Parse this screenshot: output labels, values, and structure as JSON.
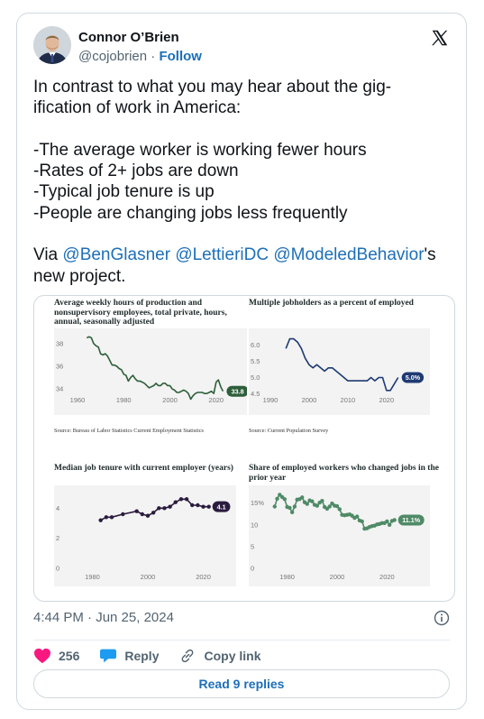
{
  "author": {
    "name": "Connor O’Brien",
    "handle": "@cojobrien",
    "separator": " · ",
    "follow_label": "Follow"
  },
  "tweet": {
    "line1": "In contrast to what you may hear about the gig-",
    "line2": "ification of work in America:",
    "bullet1": "-The average worker is working fewer hours",
    "bullet2": "-Rates of 2+ jobs are down",
    "bullet3": "-Typical job tenure is up",
    "bullet4": "-People are changing jobs less frequently",
    "via": "Via ",
    "mention1": "@BenGlasner",
    "mention2": "@LettieriDC",
    "mention3": "@ModeledBehavior",
    "suffix": "'s",
    "last_line": "new project."
  },
  "meta": {
    "timestamp": "4:44 PM · Jun 25, 2024"
  },
  "actions": {
    "likes": "256",
    "reply_label": "Reply",
    "copy_label": "Copy link"
  },
  "replies_button": "Read 9 replies",
  "colors": {
    "link": "#1d6fb8",
    "green": "#2e5e3a",
    "navy": "#1f3a73",
    "purple": "#2b1b3f",
    "teal": "#4f8a66",
    "heart": "#f91880"
  },
  "icons": {
    "logo": "x-logo-icon",
    "info": "info-icon",
    "like": "heart-icon",
    "reply": "speech-bubble-icon",
    "copy": "link-icon"
  },
  "chart_data": [
    {
      "type": "line",
      "title": "Average weekly hours of production and nonsupervisory employees, total private, hours, annual, seasonally adjusted",
      "source": "Source: Bureau of Labor Statistics Current Employment Statistics",
      "x_ticks": [
        "1960",
        "1980",
        "2000",
        "2020"
      ],
      "y_ticks": [
        "38",
        "36",
        "34"
      ],
      "xlim": [
        1960,
        2024
      ],
      "ylim": [
        33.3,
        38.7
      ],
      "end_label": "33.8",
      "x": [
        1964,
        1965,
        1966,
        1967,
        1968,
        1969,
        1970,
        1971,
        1972,
        1973,
        1974,
        1975,
        1976,
        1977,
        1978,
        1979,
        1980,
        1981,
        1982,
        1983,
        1984,
        1985,
        1986,
        1987,
        1988,
        1989,
        1990,
        1991,
        1992,
        1993,
        1994,
        1995,
        1996,
        1997,
        1998,
        1999,
        2000,
        2001,
        2002,
        2003,
        2004,
        2005,
        2006,
        2007,
        2008,
        2009,
        2010,
        2011,
        2012,
        2013,
        2014,
        2015,
        2016,
        2017,
        2018,
        2019,
        2020,
        2021,
        2022,
        2023
      ],
      "y": [
        38.5,
        38.6,
        38.5,
        38.0,
        37.8,
        37.7,
        37.1,
        37.0,
        37.1,
        36.9,
        36.5,
        36.1,
        36.1,
        36.0,
        35.8,
        35.7,
        35.3,
        35.2,
        34.7,
        35.0,
        35.2,
        34.9,
        34.7,
        34.7,
        34.6,
        34.5,
        34.3,
        34.1,
        34.2,
        34.3,
        34.5,
        34.3,
        34.3,
        34.5,
        34.5,
        34.3,
        34.3,
        34.0,
        33.9,
        33.7,
        33.7,
        33.8,
        33.9,
        33.8,
        33.6,
        33.1,
        33.4,
        33.6,
        33.7,
        33.7,
        33.7,
        33.6,
        33.6,
        33.7,
        33.8,
        33.6,
        34.6,
        34.8,
        34.2,
        33.8
      ]
    },
    {
      "type": "line",
      "title": "Multiple jobholders as a percent of employed",
      "source": "Source: Current Population Survey",
      "x_ticks": [
        "1990",
        "2000",
        "2010",
        "2020"
      ],
      "y_ticks": [
        "6.0",
        "5.5",
        "5.0",
        "4.5"
      ],
      "xlim": [
        1990,
        2024
      ],
      "ylim": [
        4.4,
        6.3
      ],
      "end_label": "5.0%",
      "x": [
        1994,
        1995,
        1996,
        1997,
        1998,
        1999,
        2000,
        2001,
        2002,
        2003,
        2004,
        2005,
        2006,
        2007,
        2008,
        2009,
        2010,
        2011,
        2012,
        2013,
        2014,
        2015,
        2016,
        2017,
        2018,
        2019,
        2020,
        2021,
        2022,
        2023
      ],
      "y": [
        5.9,
        6.2,
        6.2,
        6.1,
        5.9,
        5.6,
        5.4,
        5.3,
        5.4,
        5.3,
        5.2,
        5.3,
        5.3,
        5.2,
        5.1,
        5.0,
        4.9,
        4.9,
        4.9,
        4.9,
        4.9,
        4.9,
        5.0,
        4.9,
        5.0,
        5.0,
        4.6,
        4.6,
        4.8,
        5.0
      ]
    },
    {
      "type": "line",
      "title": "Median job tenure with current employer (years)",
      "x_ticks": [
        "1980",
        "2000",
        "2020"
      ],
      "y_ticks": [
        "4",
        "2",
        "0"
      ],
      "xlim": [
        1974,
        2026
      ],
      "ylim": [
        0,
        4.8
      ],
      "end_label": "4.1",
      "x": [
        1983,
        1985,
        1987,
        1991,
        1996,
        1998,
        2000,
        2002,
        2004,
        2006,
        2008,
        2010,
        2012,
        2014,
        2016,
        2018,
        2020,
        2022
      ],
      "y": [
        3.2,
        3.4,
        3.4,
        3.6,
        3.8,
        3.6,
        3.5,
        3.7,
        4.0,
        4.0,
        4.1,
        4.4,
        4.6,
        4.6,
        4.2,
        4.2,
        4.1,
        4.1
      ]
    },
    {
      "type": "line",
      "title": "Share of employed workers who changed jobs in the prior year",
      "x_ticks": [
        "1980",
        "2000",
        "2020"
      ],
      "y_ticks": [
        "15%",
        "10",
        "5",
        "0"
      ],
      "xlim": [
        1974,
        2026
      ],
      "ylim": [
        0,
        17
      ],
      "end_label": "11.1%",
      "x": [
        1975,
        1976,
        1977,
        1978,
        1979,
        1980,
        1981,
        1982,
        1983,
        1984,
        1985,
        1986,
        1987,
        1988,
        1989,
        1990,
        1991,
        1992,
        1993,
        1994,
        1995,
        1996,
        1997,
        1998,
        1999,
        2000,
        2001,
        2002,
        2003,
        2004,
        2005,
        2006,
        2007,
        2008,
        2009,
        2010,
        2011,
        2012,
        2013,
        2014,
        2015,
        2016,
        2017,
        2018,
        2019,
        2020,
        2021,
        2022,
        2023
      ],
      "y": [
        14.2,
        16.0,
        16.9,
        16.4,
        15.9,
        14.1,
        13.9,
        12.9,
        14.2,
        15.8,
        15.9,
        16.3,
        15.2,
        14.8,
        15.6,
        15.4,
        14.6,
        14.4,
        15.1,
        15.5,
        14.1,
        13.7,
        14.2,
        14.9,
        14.4,
        14.3,
        13.6,
        12.3,
        12.2,
        12.3,
        12.4,
        12.1,
        11.6,
        11.9,
        11.0,
        10.8,
        9.1,
        9.2,
        9.5,
        9.7,
        9.8,
        10.1,
        10.2,
        10.4,
        10.4,
        10.8,
        10.0,
        10.9,
        11.1
      ]
    }
  ]
}
